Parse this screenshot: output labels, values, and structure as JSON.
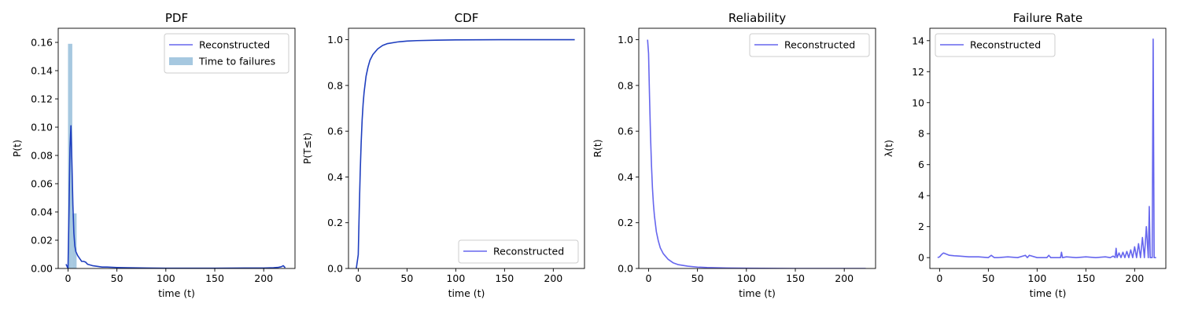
{
  "chart_data": [
    {
      "type": "line",
      "title": "PDF",
      "xlabel": "time (t)",
      "ylabel": "P(t)",
      "xlim": [
        -10,
        232
      ],
      "ylim": [
        0,
        0.17
      ],
      "xticks": [
        0,
        50,
        100,
        150,
        200
      ],
      "xtick_labels": [
        "0",
        "50",
        "100",
        "150",
        "200"
      ],
      "yticks": [
        0,
        0.02,
        0.04,
        0.06,
        0.08,
        0.1,
        0.12,
        0.14,
        0.16
      ],
      "ytick_labels": [
        "0.00",
        "0.02",
        "0.04",
        "0.06",
        "0.08",
        "0.10",
        "0.12",
        "0.14",
        "0.16"
      ],
      "legend": {
        "loc": "top-right",
        "entries": [
          {
            "label": "Reconstructed",
            "kind": "line",
            "color": "#6666ee"
          },
          {
            "label": "Time to failures",
            "kind": "patch",
            "color": "#a6c8e0"
          }
        ]
      },
      "histogram": {
        "name": "Time to failures",
        "color": "#a6c8e0",
        "bin_edges": [
          0,
          4.4,
          8.8,
          13.2
        ],
        "counts": [
          0.159,
          0.039,
          0.0
        ]
      },
      "series": [
        {
          "name": "Reconstructed",
          "color": "#1f3fbf",
          "x": [
            -2,
            0,
            1,
            2,
            3,
            4,
            5,
            6,
            7,
            8,
            10,
            12,
            14,
            16,
            18,
            20,
            25,
            30,
            35,
            40,
            50,
            60,
            80,
            100,
            120,
            150,
            180,
            200,
            210,
            215,
            218,
            220,
            222
          ],
          "y": [
            0.003,
            0.0,
            0.04,
            0.085,
            0.101,
            0.075,
            0.045,
            0.025,
            0.016,
            0.012,
            0.009,
            0.007,
            0.005,
            0.005,
            0.0045,
            0.003,
            0.002,
            0.0015,
            0.001,
            0.001,
            0.0007,
            0.0005,
            0.0003,
            0.0002,
            0.0002,
            0.0002,
            0.0003,
            0.0003,
            0.0005,
            0.0008,
            0.0012,
            0.002,
            0.0005
          ]
        }
      ]
    },
    {
      "type": "line",
      "title": "CDF",
      "xlabel": "time (t)",
      "ylabel": "P(T≤t)",
      "xlim": [
        -10,
        232
      ],
      "ylim": [
        0,
        1.05
      ],
      "xticks": [
        0,
        50,
        100,
        150,
        200
      ],
      "xtick_labels": [
        "0",
        "50",
        "100",
        "150",
        "200"
      ],
      "yticks": [
        0,
        0.2,
        0.4,
        0.6,
        0.8,
        1.0
      ],
      "ytick_labels": [
        "0.0",
        "0.2",
        "0.4",
        "0.6",
        "0.8",
        "1.0"
      ],
      "legend": {
        "loc": "bottom-right",
        "entries": [
          {
            "label": "Reconstructed",
            "kind": "line",
            "color": "#6666ee"
          }
        ]
      },
      "series": [
        {
          "name": "Reconstructed",
          "color": "#1f3fbf",
          "x": [
            -2,
            0,
            1,
            2,
            3,
            4,
            5,
            6,
            8,
            10,
            12,
            15,
            18,
            20,
            25,
            30,
            40,
            50,
            60,
            80,
            100,
            150,
            200,
            222
          ],
          "y": [
            0.0,
            0.06,
            0.25,
            0.42,
            0.55,
            0.65,
            0.72,
            0.77,
            0.84,
            0.88,
            0.91,
            0.935,
            0.95,
            0.96,
            0.975,
            0.983,
            0.99,
            0.994,
            0.996,
            0.998,
            0.999,
            1.0,
            1.0,
            1.0
          ]
        }
      ]
    },
    {
      "type": "line",
      "title": "Reliability",
      "xlabel": "time (t)",
      "ylabel": "R(t)",
      "xlim": [
        -10,
        232
      ],
      "ylim": [
        0,
        1.05
      ],
      "xticks": [
        0,
        50,
        100,
        150,
        200
      ],
      "xtick_labels": [
        "0",
        "50",
        "100",
        "150",
        "200"
      ],
      "yticks": [
        0,
        0.2,
        0.4,
        0.6,
        0.8,
        1.0
      ],
      "ytick_labels": [
        "0.0",
        "0.2",
        "0.4",
        "0.6",
        "0.8",
        "1.0"
      ],
      "legend": {
        "loc": "top-right",
        "entries": [
          {
            "label": "Reconstructed",
            "kind": "line",
            "color": "#6666ee"
          }
        ]
      },
      "series": [
        {
          "name": "Reconstructed",
          "color": "#6666ee",
          "x": [
            -1,
            0,
            1,
            2,
            3,
            4,
            5,
            6,
            8,
            10,
            12,
            15,
            18,
            20,
            25,
            30,
            40,
            50,
            60,
            80,
            100,
            150,
            200,
            222
          ],
          "y": [
            1.0,
            0.94,
            0.75,
            0.58,
            0.45,
            0.35,
            0.28,
            0.23,
            0.16,
            0.12,
            0.09,
            0.065,
            0.05,
            0.04,
            0.025,
            0.017,
            0.01,
            0.006,
            0.004,
            0.002,
            0.001,
            0.0,
            0.0,
            0.0
          ]
        }
      ]
    },
    {
      "type": "line",
      "title": "Failure Rate",
      "xlabel": "time (t)",
      "ylabel": "λ(t)",
      "xlim": [
        -10,
        232
      ],
      "ylim": [
        -0.7,
        14.8
      ],
      "xticks": [
        0,
        50,
        100,
        150,
        200
      ],
      "xtick_labels": [
        "0",
        "50",
        "100",
        "150",
        "200"
      ],
      "yticks": [
        0,
        2,
        4,
        6,
        8,
        10,
        12,
        14
      ],
      "ytick_labels": [
        "0",
        "2",
        "4",
        "6",
        "8",
        "10",
        "12",
        "14"
      ],
      "legend": {
        "loc": "top-left",
        "entries": [
          {
            "label": "Reconstructed",
            "kind": "line",
            "color": "#6666ee"
          }
        ]
      },
      "series": [
        {
          "name": "Reconstructed",
          "color": "#6666ee",
          "x": [
            -2,
            0,
            2,
            4,
            6,
            10,
            15,
            20,
            30,
            40,
            50,
            53,
            56,
            60,
            70,
            80,
            88,
            90,
            92,
            100,
            110,
            112,
            114,
            120,
            124,
            125,
            126,
            130,
            140,
            150,
            160,
            170,
            175,
            178,
            180,
            181,
            182,
            184,
            186,
            188,
            190,
            192,
            194,
            196,
            198,
            200,
            202,
            204,
            206,
            208,
            210,
            212,
            214,
            215,
            216,
            217,
            218,
            219,
            220,
            221,
            222
          ],
          "y": [
            0.0,
            0.05,
            0.2,
            0.3,
            0.25,
            0.15,
            0.12,
            0.1,
            0.05,
            0.05,
            0.0,
            0.15,
            0.0,
            0.0,
            0.05,
            0.0,
            0.15,
            0.0,
            0.15,
            0.0,
            0.0,
            0.15,
            0.0,
            0.0,
            0.0,
            0.35,
            0.0,
            0.05,
            0.0,
            0.05,
            0.0,
            0.05,
            0.0,
            0.1,
            0.0,
            0.6,
            0.0,
            0.3,
            0.0,
            0.35,
            0.0,
            0.4,
            0.0,
            0.5,
            0.0,
            0.7,
            0.0,
            0.9,
            0.0,
            1.3,
            0.0,
            2.0,
            0.0,
            3.3,
            0.0,
            0.0,
            0.0,
            14.1,
            0.0,
            0.0,
            0.0
          ]
        }
      ]
    }
  ]
}
